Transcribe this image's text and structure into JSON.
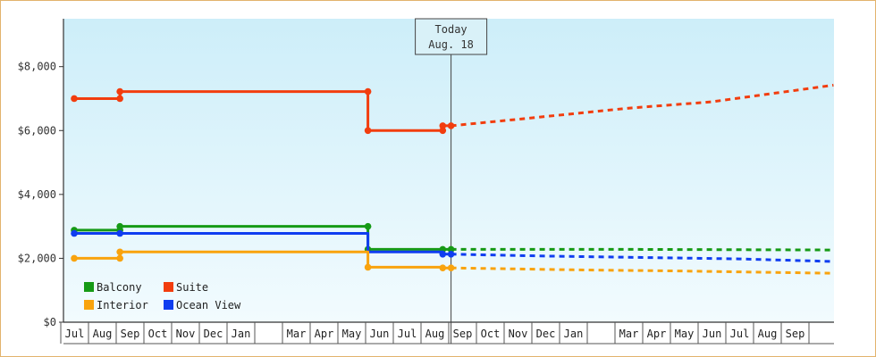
{
  "chart_data": {
    "type": "line",
    "title": "",
    "xlabel": "",
    "ylabel": "",
    "ylim": [
      0,
      9500
    ],
    "y_ticks": [
      0,
      2000,
      4000,
      6000,
      8000
    ],
    "y_tick_labels": [
      "$0",
      "$2,000",
      "$4,000",
      "$6,000",
      "$8,000"
    ],
    "month_labels": [
      "Jul",
      "Aug",
      "Sep",
      "Oct",
      "Nov",
      "Dec",
      "Jan",
      "",
      "Mar",
      "Apr",
      "May",
      "Jun",
      "Jul",
      "Aug",
      "Sep",
      "Oct",
      "Nov",
      "Dec",
      "Jan",
      "",
      "Mar",
      "Apr",
      "May",
      "Jun",
      "Jul",
      "Aug",
      "Sep"
    ],
    "x_unit": "month index from first month column",
    "xlim": [
      0,
      27.4
    ],
    "today": {
      "x": 13.6,
      "line1": "Today",
      "line2": "Aug. 18"
    },
    "grid": false,
    "background_gradient": [
      "#cdeef9",
      "#f2fbfe"
    ],
    "legend": {
      "placement": "bottom-left",
      "entries": [
        "Balcony",
        "Suite",
        "Interior",
        "Ocean View"
      ]
    },
    "series": [
      {
        "name": "Suite",
        "color": "#f23d0e",
        "points": [
          [
            0,
            7000
          ],
          [
            1.65,
            7000
          ],
          [
            1.65,
            7220
          ],
          [
            10.6,
            7220
          ],
          [
            10.6,
            6000
          ],
          [
            13.3,
            6000
          ],
          [
            13.3,
            6150
          ],
          [
            13.6,
            6150
          ]
        ],
        "markers": [
          [
            0,
            7000
          ],
          [
            1.65,
            7000
          ],
          [
            1.65,
            7220
          ],
          [
            10.6,
            7220
          ],
          [
            10.6,
            6000
          ],
          [
            13.3,
            6000
          ],
          [
            13.3,
            6150
          ],
          [
            13.6,
            6150
          ]
        ],
        "forecast": [
          [
            13.6,
            6150
          ],
          [
            16,
            6350
          ],
          [
            20,
            6700
          ],
          [
            23,
            6900
          ],
          [
            27.4,
            7420
          ]
        ]
      },
      {
        "name": "Balcony",
        "color": "#169a16",
        "points": [
          [
            0,
            2880
          ],
          [
            1.65,
            2880
          ],
          [
            1.65,
            3000
          ],
          [
            10.6,
            3000
          ],
          [
            10.6,
            2280
          ],
          [
            13.3,
            2280
          ],
          [
            13.6,
            2280
          ]
        ],
        "markers": [
          [
            0,
            2880
          ],
          [
            1.65,
            2880
          ],
          [
            1.65,
            3000
          ],
          [
            10.6,
            3000
          ],
          [
            10.6,
            2280
          ],
          [
            13.3,
            2280
          ],
          [
            13.6,
            2280
          ]
        ],
        "forecast": [
          [
            13.6,
            2280
          ],
          [
            20,
            2280
          ],
          [
            27.4,
            2260
          ]
        ]
      },
      {
        "name": "Ocean View",
        "color": "#0f3df0",
        "points": [
          [
            0,
            2780
          ],
          [
            1.65,
            2780
          ],
          [
            1.65,
            2780
          ],
          [
            10.6,
            2780
          ],
          [
            10.6,
            2200
          ],
          [
            13.3,
            2200
          ],
          [
            13.3,
            2130
          ],
          [
            13.6,
            2130
          ]
        ],
        "markers": [
          [
            0,
            2780
          ],
          [
            1.65,
            2780
          ],
          [
            13.3,
            2130
          ],
          [
            13.6,
            2130
          ]
        ],
        "forecast": [
          [
            13.6,
            2130
          ],
          [
            17,
            2070
          ],
          [
            21,
            2020
          ],
          [
            24,
            1980
          ],
          [
            27.4,
            1900
          ]
        ]
      },
      {
        "name": "Interior",
        "color": "#f9a30e",
        "points": [
          [
            0,
            2000
          ],
          [
            1.65,
            2000
          ],
          [
            1.65,
            2200
          ],
          [
            10.6,
            2200
          ],
          [
            10.6,
            1720
          ],
          [
            13.3,
            1720
          ],
          [
            13.3,
            1700
          ],
          [
            13.6,
            1700
          ]
        ],
        "markers": [
          [
            0,
            2000
          ],
          [
            1.65,
            2000
          ],
          [
            1.65,
            2200
          ],
          [
            10.6,
            1720
          ],
          [
            13.3,
            1700
          ],
          [
            13.6,
            1700
          ]
        ],
        "forecast": [
          [
            13.6,
            1700
          ],
          [
            18,
            1640
          ],
          [
            22,
            1600
          ],
          [
            27.4,
            1530
          ]
        ]
      }
    ]
  }
}
